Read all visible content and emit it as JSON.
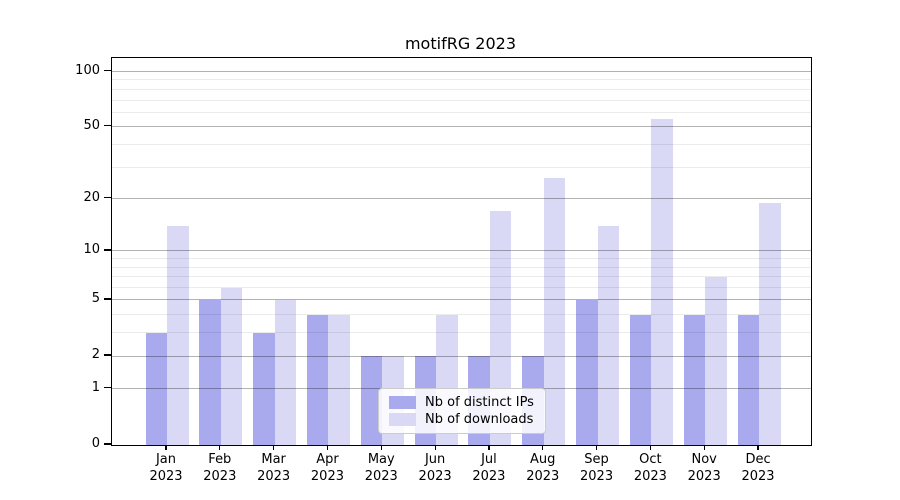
{
  "title": "motifRG 2023",
  "chart_data": {
    "type": "bar",
    "title": "motifRG 2023",
    "x_categories_line1": [
      "Jan",
      "Feb",
      "Mar",
      "Apr",
      "May",
      "Jun",
      "Jul",
      "Aug",
      "Sep",
      "Oct",
      "Nov",
      "Dec"
    ],
    "x_categories_line2": "2023",
    "categories": [
      "Jan 2023",
      "Feb 2023",
      "Mar 2023",
      "Apr 2023",
      "May 2023",
      "Jun 2023",
      "Jul 2023",
      "Aug 2023",
      "Sep 2023",
      "Oct 2023",
      "Nov 2023",
      "Dec 2023"
    ],
    "series": [
      {
        "name": "Nb of distinct IPs",
        "color": "#a9a9ee",
        "values": [
          3,
          5,
          3,
          4,
          2,
          2,
          2,
          2,
          5,
          4,
          4,
          4
        ]
      },
      {
        "name": "Nb of downloads",
        "color": "#d9d9f6",
        "values": [
          14,
          6,
          5,
          4,
          2,
          4,
          17,
          26,
          14,
          55,
          7,
          19
        ]
      }
    ],
    "y_scale": "log1p (position proportional to log10(1+value))",
    "y_ticks_major": [
      100,
      50,
      20,
      10,
      5,
      2,
      1,
      0
    ],
    "y_ticks_minor": [
      90,
      80,
      70,
      60,
      40,
      30,
      9,
      8,
      7,
      6,
      4,
      3
    ],
    "ylim": [
      0,
      118
    ],
    "grid": "horizontal major and minor gridlines",
    "legend_position": "lower center inside plot"
  }
}
